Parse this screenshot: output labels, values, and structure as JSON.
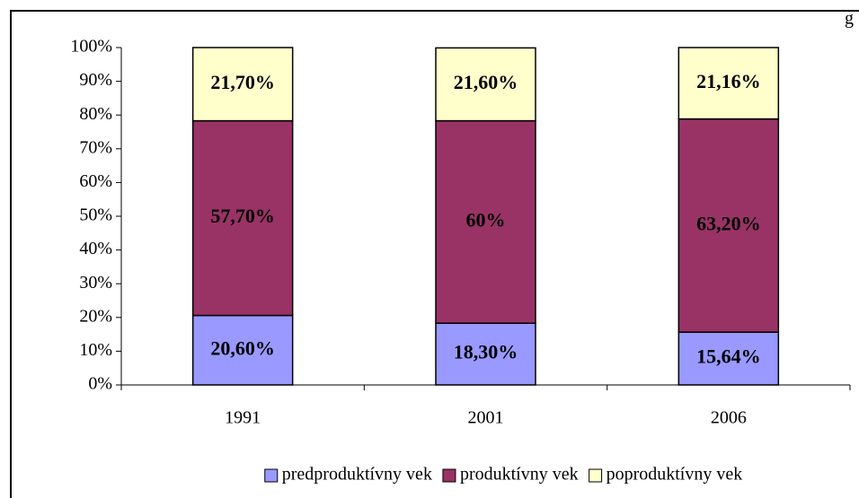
{
  "chart_data": {
    "type": "stacked_bar",
    "annotation": "g",
    "categories": [
      "1991",
      "2001",
      "2006"
    ],
    "series": [
      {
        "name": "predproduktívny vek",
        "color": "#9999ff",
        "values": [
          20.6,
          18.3,
          15.64
        ],
        "value_labels": [
          "20,60%",
          "18,30%",
          "15,64%"
        ]
      },
      {
        "name": "produktívny vek",
        "color": "#993366",
        "values": [
          57.7,
          60,
          63.2
        ],
        "value_labels": [
          "57,70%",
          "60%",
          "63,20%"
        ]
      },
      {
        "name": "poproduktívny vek",
        "color": "#ffffcc",
        "values": [
          21.7,
          21.6,
          21.16
        ],
        "value_labels": [
          "21,70%",
          "21,60%",
          "21,16%"
        ]
      }
    ],
    "ylim": [
      0,
      100
    ],
    "yticks": [
      {
        "value": 0,
        "label": "0%"
      },
      {
        "value": 10,
        "label": "10%"
      },
      {
        "value": 20,
        "label": "20%"
      },
      {
        "value": 30,
        "label": "30%"
      },
      {
        "value": 40,
        "label": "40%"
      },
      {
        "value": 50,
        "label": "50%"
      },
      {
        "value": 60,
        "label": "60%"
      },
      {
        "value": 70,
        "label": "70%"
      },
      {
        "value": 80,
        "label": "80%"
      },
      {
        "value": 90,
        "label": "90%"
      },
      {
        "value": 100,
        "label": "100%"
      }
    ],
    "legend": "bottom"
  }
}
